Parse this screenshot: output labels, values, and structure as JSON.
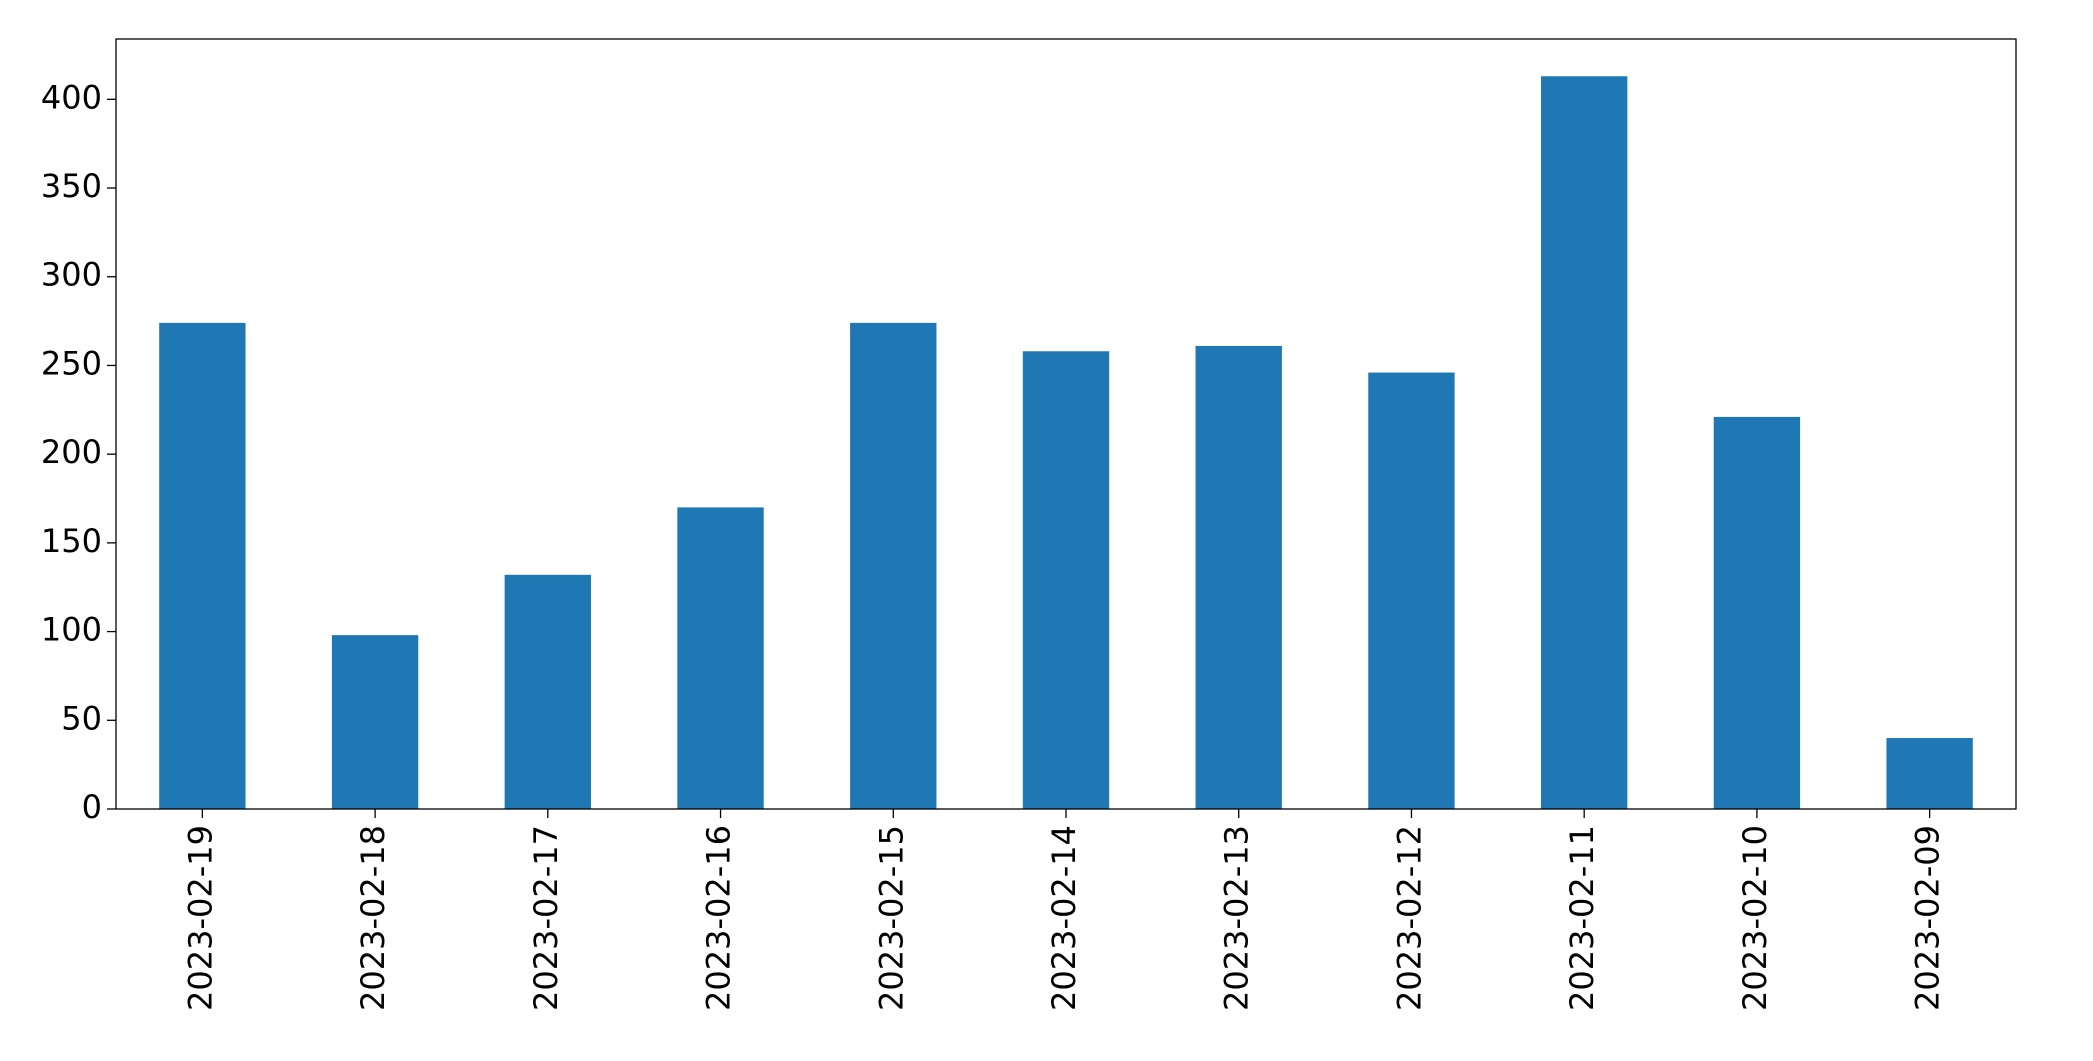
{
  "chart_data": {
    "type": "bar",
    "categories": [
      "2023-02-19",
      "2023-02-18",
      "2023-02-17",
      "2023-02-16",
      "2023-02-15",
      "2023-02-14",
      "2023-02-13",
      "2023-02-12",
      "2023-02-11",
      "2023-02-10",
      "2023-02-09"
    ],
    "values": [
      274,
      98,
      132,
      170,
      274,
      258,
      261,
      246,
      413,
      221,
      40
    ],
    "color": "#1f77b4",
    "ylim": [
      0,
      434
    ],
    "yticks": [
      0,
      50,
      100,
      150,
      200,
      250,
      300,
      350,
      400
    ],
    "grid": false
  }
}
